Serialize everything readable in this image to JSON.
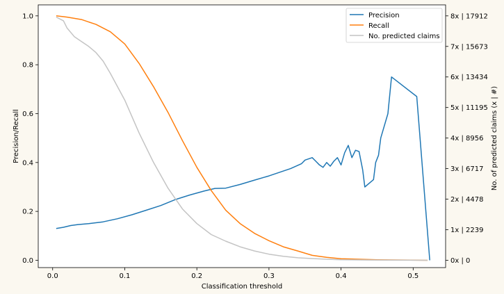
{
  "chart_data": {
    "type": "line",
    "xlabel": "Classification threshold",
    "ylabel": "Precision/Recall",
    "y2label": "No. of predicted claims (x | #)",
    "xlim": [
      -0.02,
      0.545
    ],
    "ylim": [
      -0.03,
      1.045
    ],
    "y2lim": [
      -0.03,
      1.045
    ],
    "xticks": [
      0.0,
      0.1,
      0.2,
      0.3,
      0.4,
      0.5
    ],
    "xtick_labels": [
      "0.0",
      "0.1",
      "0.2",
      "0.3",
      "0.4",
      "0.5"
    ],
    "yticks": [
      0.0,
      0.2,
      0.4,
      0.6,
      0.8,
      1.0
    ],
    "ytick_labels": [
      "0.0",
      "0.2",
      "0.4",
      "0.6",
      "0.8",
      "1.0"
    ],
    "y2ticks": [
      0.0,
      0.125,
      0.25,
      0.375,
      0.5,
      0.625,
      0.75,
      0.875,
      1.0
    ],
    "y2tick_labels": [
      "0x | 0",
      "1x | 2239",
      "2x | 4478",
      "3x | 6717",
      "4x | 8956",
      "5x | 11195",
      "6x | 13434",
      "7x | 15673",
      "8x | 17912"
    ],
    "grid": false,
    "legend_position": "top-right",
    "series": [
      {
        "name": "Precision",
        "color": "#1f77b4",
        "axis": "left",
        "x": [
          0.005,
          0.015,
          0.025,
          0.035,
          0.05,
          0.07,
          0.09,
          0.11,
          0.13,
          0.15,
          0.17,
          0.19,
          0.21,
          0.225,
          0.24,
          0.26,
          0.28,
          0.3,
          0.32,
          0.33,
          0.345,
          0.35,
          0.36,
          0.365,
          0.37,
          0.375,
          0.38,
          0.385,
          0.39,
          0.395,
          0.4,
          0.405,
          0.41,
          0.415,
          0.42,
          0.425,
          0.43,
          0.433,
          0.445,
          0.448,
          0.452,
          0.455,
          0.465,
          0.47,
          0.505,
          0.523
        ],
        "y": [
          0.13,
          0.135,
          0.142,
          0.146,
          0.15,
          0.157,
          0.17,
          0.186,
          0.205,
          0.224,
          0.248,
          0.267,
          0.283,
          0.294,
          0.295,
          0.31,
          0.328,
          0.345,
          0.365,
          0.375,
          0.395,
          0.41,
          0.42,
          0.405,
          0.39,
          0.38,
          0.4,
          0.385,
          0.405,
          0.42,
          0.39,
          0.44,
          0.47,
          0.42,
          0.45,
          0.445,
          0.37,
          0.3,
          0.33,
          0.4,
          0.43,
          0.5,
          0.6,
          0.75,
          0.67,
          0.0
        ]
      },
      {
        "name": "Recall",
        "color": "#ff7f0e",
        "axis": "left",
        "x": [
          0.005,
          0.02,
          0.04,
          0.06,
          0.08,
          0.1,
          0.12,
          0.14,
          0.16,
          0.18,
          0.2,
          0.22,
          0.24,
          0.26,
          0.28,
          0.3,
          0.32,
          0.34,
          0.36,
          0.38,
          0.4,
          0.45,
          0.52
        ],
        "y": [
          1.0,
          0.995,
          0.985,
          0.965,
          0.935,
          0.885,
          0.805,
          0.71,
          0.605,
          0.49,
          0.38,
          0.285,
          0.205,
          0.15,
          0.11,
          0.08,
          0.055,
          0.038,
          0.02,
          0.012,
          0.006,
          0.002,
          0.0
        ]
      },
      {
        "name": "No. predicted claims",
        "color": "#c4c4c4",
        "axis": "right",
        "x": [
          0.005,
          0.015,
          0.02,
          0.03,
          0.04,
          0.05,
          0.06,
          0.07,
          0.08,
          0.1,
          0.12,
          0.14,
          0.16,
          0.18,
          0.2,
          0.22,
          0.24,
          0.26,
          0.28,
          0.3,
          0.32,
          0.34,
          0.36,
          0.38,
          0.4,
          0.44,
          0.52
        ],
        "y": [
          0.995,
          0.98,
          0.95,
          0.915,
          0.895,
          0.875,
          0.85,
          0.815,
          0.765,
          0.655,
          0.52,
          0.4,
          0.295,
          0.21,
          0.15,
          0.105,
          0.078,
          0.055,
          0.038,
          0.025,
          0.016,
          0.01,
          0.007,
          0.004,
          0.002,
          0.001,
          0.0
        ]
      }
    ]
  }
}
